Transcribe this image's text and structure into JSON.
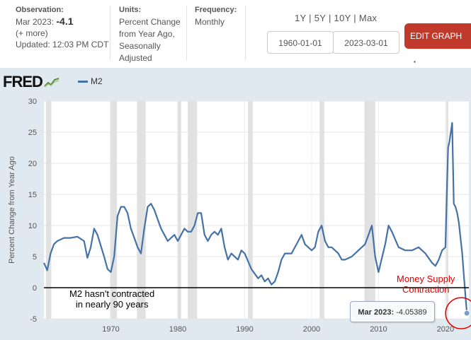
{
  "header": {
    "observation_label": "Observation:",
    "observation_date": "Mar 2023:",
    "observation_value": "-4.1",
    "more": "(+ more)",
    "updated": "Updated: 12:03 PM CDT",
    "units_label": "Units:",
    "units_lines": [
      "Percent Change",
      "from Year Ago,",
      "Seasonally",
      "Adjusted"
    ],
    "frequency_label": "Frequency:",
    "frequency_value": "Monthly",
    "ranges": "1Y | 5Y | 10Y | Max",
    "start_date": "1960-01-01",
    "end_date": "2023-03-01",
    "edit_button": "EDIT GRAPH",
    "accent_color": "#c0392b"
  },
  "logo": "FRED",
  "annotations": {
    "left_line1": "M2 hasn't contracted",
    "left_line2": "in nearly 90 years",
    "right_line1": "Money Supply",
    "right_line2": "Contraction",
    "right_color": "#e00000",
    "tooltip_date": "Mar 2023:",
    "tooltip_value": "-4.05389"
  },
  "chart_data": {
    "type": "line",
    "ylabel": "Percent Change from Year Ago",
    "xlim": [
      1960,
      2023.5
    ],
    "ylim": [
      -5,
      30
    ],
    "yticks": [
      -5,
      0,
      5,
      10,
      15,
      20,
      25,
      30
    ],
    "xticks": [
      1970,
      1980,
      1990,
      2000,
      2010,
      2020
    ],
    "series_color": "#4572a7",
    "recessions": [
      [
        1960.3,
        1961.1
      ],
      [
        1969.9,
        1970.9
      ],
      [
        1973.9,
        1975.2
      ],
      [
        1980.0,
        1980.5
      ],
      [
        1981.5,
        1982.9
      ],
      [
        1990.5,
        1991.2
      ],
      [
        2001.2,
        2001.9
      ],
      [
        2007.9,
        2009.5
      ],
      [
        2020.1,
        2020.4
      ]
    ],
    "series": [
      {
        "name": "M2",
        "x": [
          1960.0,
          1960.5,
          1961.0,
          1961.5,
          1962.0,
          1963.0,
          1964.0,
          1965.0,
          1966.0,
          1966.5,
          1967.0,
          1967.5,
          1968.0,
          1969.0,
          1969.5,
          1970.0,
          1970.5,
          1971.0,
          1971.5,
          1972.0,
          1972.5,
          1973.0,
          1973.5,
          1974.0,
          1974.5,
          1975.0,
          1975.5,
          1976.0,
          1976.5,
          1977.0,
          1977.5,
          1978.0,
          1978.5,
          1979.0,
          1979.5,
          1980.0,
          1980.5,
          1981.0,
          1981.5,
          1982.0,
          1982.5,
          1983.0,
          1983.5,
          1984.0,
          1984.5,
          1985.0,
          1985.5,
          1986.0,
          1986.5,
          1987.0,
          1987.5,
          1988.0,
          1989.0,
          1989.5,
          1990.0,
          1991.0,
          1992.0,
          1992.5,
          1993.0,
          1993.5,
          1994.0,
          1994.5,
          1995.0,
          1995.5,
          1996.0,
          1997.0,
          1998.0,
          1998.5,
          1999.0,
          2000.0,
          2000.5,
          2001.0,
          2001.5,
          2002.0,
          2002.5,
          2003.0,
          2004.0,
          2004.5,
          2005.0,
          2006.0,
          2006.5,
          2007.0,
          2008.0,
          2008.5,
          2009.0,
          2009.5,
          2010.0,
          2011.0,
          2011.5,
          2012.0,
          2013.0,
          2014.0,
          2015.0,
          2016.0,
          2017.0,
          2018.0,
          2018.5,
          2019.0,
          2019.5,
          2020.0,
          2020.25,
          2020.4,
          2020.6,
          2021.0,
          2021.25,
          2021.5,
          2021.75,
          2022.0,
          2022.5,
          2022.75,
          2023.0,
          2023.2
        ],
        "values": [
          4.0,
          2.8,
          5.5,
          7.0,
          7.5,
          8.0,
          8.0,
          8.2,
          7.5,
          4.8,
          6.5,
          9.5,
          8.5,
          5.0,
          3.0,
          2.5,
          5.0,
          11.5,
          13.0,
          13.0,
          12.0,
          9.5,
          8.0,
          6.5,
          5.5,
          9.5,
          13.0,
          13.5,
          12.5,
          11.0,
          9.5,
          8.5,
          7.5,
          8.0,
          8.5,
          7.5,
          8.5,
          9.5,
          9.0,
          9.0,
          10.0,
          12.0,
          12.0,
          8.5,
          7.5,
          8.5,
          9.0,
          8.5,
          9.5,
          6.5,
          4.5,
          5.5,
          4.5,
          6.0,
          5.5,
          3.0,
          1.5,
          2.0,
          1.0,
          1.5,
          0.5,
          1.0,
          2.5,
          4.5,
          5.5,
          5.5,
          7.5,
          8.5,
          7.0,
          6.0,
          6.5,
          9.0,
          10.0,
          7.5,
          6.5,
          6.5,
          5.5,
          4.5,
          4.5,
          5.0,
          5.5,
          6.0,
          7.0,
          8.5,
          10.0,
          5.0,
          2.5,
          7.0,
          10.0,
          9.0,
          6.5,
          6.0,
          6.0,
          6.5,
          5.5,
          4.0,
          3.5,
          4.5,
          6.0,
          6.5,
          17.0,
          22.5,
          23.5,
          26.5,
          13.5,
          13.0,
          12.0,
          10.5,
          5.5,
          2.0,
          -1.5,
          -4.1
        ]
      }
    ]
  }
}
